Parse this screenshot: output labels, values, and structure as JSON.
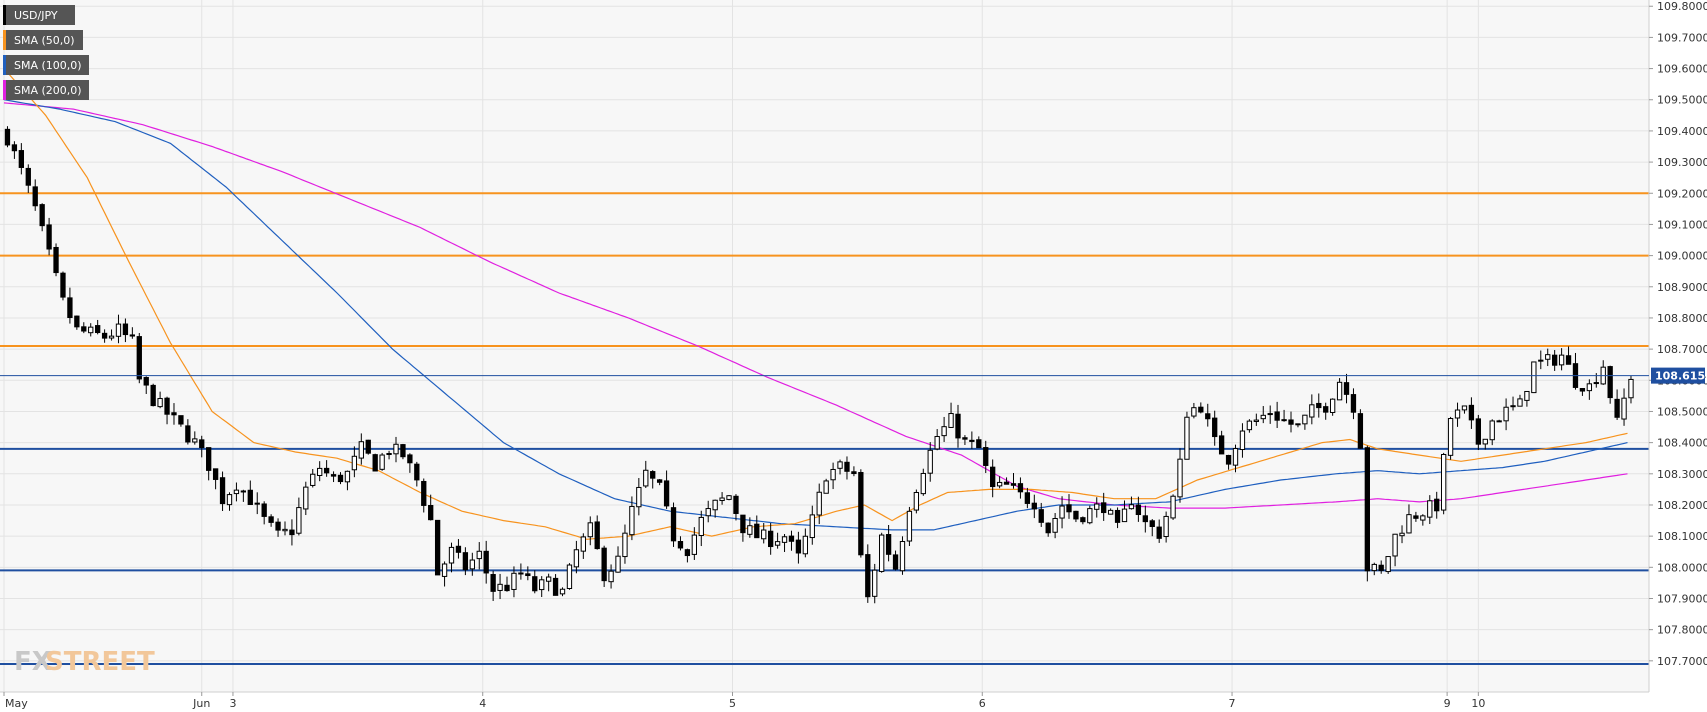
{
  "chart_data": {
    "type": "candlestick",
    "symbol": "USD/JPY",
    "legend": [
      {
        "label": "USD/JPY",
        "color": "#000000"
      },
      {
        "label": "SMA (50,0)",
        "color": "#f7931e"
      },
      {
        "label": "SMA (100,0)",
        "color": "#1f5fbf"
      },
      {
        "label": "SMA (200,0)",
        "color": "#e020e0"
      }
    ],
    "ylim": [
      107.6,
      109.82
    ],
    "yticks": [
      "109.8000",
      "109.7000",
      "109.6000",
      "109.5000",
      "109.4000",
      "109.3000",
      "109.2000",
      "109.1000",
      "109.0000",
      "108.9000",
      "108.8000",
      "108.7000",
      "108.6000",
      "108.5000",
      "108.4000",
      "108.3000",
      "108.2000",
      "108.1000",
      "108.0000",
      "107.9000",
      "107.8000",
      "107.7000"
    ],
    "xlim": [
      0,
      240
    ],
    "xticks": [
      {
        "label": "May",
        "x": 0
      },
      {
        "label": "Jun",
        "x": 28.5
      },
      {
        "label": "3",
        "x": 33
      },
      {
        "label": "4",
        "x": 69
      },
      {
        "label": "5",
        "x": 105
      },
      {
        "label": "6",
        "x": 141
      },
      {
        "label": "7",
        "x": 177
      },
      {
        "label": "9",
        "x": 208
      },
      {
        "label": "10",
        "x": 212.5
      }
    ],
    "last_price": 108.615,
    "last_price_label": "108.6150",
    "horizontal_levels": [
      {
        "value": 109.2,
        "color": "#f7931e"
      },
      {
        "value": 109.0,
        "color": "#f7931e"
      },
      {
        "value": 108.71,
        "color": "#f7931e"
      },
      {
        "value": 108.38,
        "color": "#1f4fa0"
      },
      {
        "value": 107.99,
        "color": "#1f4fa0"
      },
      {
        "value": 107.69,
        "color": "#1f4fa0"
      }
    ],
    "close_anchors": [
      [
        0,
        109.38
      ],
      [
        2,
        109.27
      ],
      [
        4,
        109.15
      ],
      [
        6,
        109.0
      ],
      [
        8,
        108.85
      ],
      [
        10,
        108.76
      ],
      [
        12,
        108.75
      ],
      [
        14,
        108.74
      ],
      [
        16,
        108.76
      ],
      [
        18,
        108.72
      ],
      [
        19,
        108.6
      ],
      [
        21,
        108.54
      ],
      [
        24,
        108.47
      ],
      [
        27,
        108.4
      ],
      [
        29,
        108.33
      ],
      [
        31,
        108.22
      ],
      [
        33,
        108.27
      ],
      [
        35,
        108.22
      ],
      [
        37,
        108.15
      ],
      [
        39,
        108.1
      ],
      [
        41,
        108.12
      ],
      [
        43,
        108.25
      ],
      [
        45,
        108.32
      ],
      [
        47,
        108.28
      ],
      [
        49,
        108.3
      ],
      [
        51,
        108.38
      ],
      [
        53,
        108.33
      ],
      [
        55,
        108.38
      ],
      [
        57,
        108.36
      ],
      [
        59,
        108.28
      ],
      [
        61,
        108.15
      ],
      [
        62,
        107.98
      ],
      [
        64,
        108.05
      ],
      [
        66,
        108.0
      ],
      [
        68,
        108.04
      ],
      [
        70,
        107.93
      ],
      [
        72,
        107.94
      ],
      [
        74,
        107.98
      ],
      [
        76,
        107.93
      ],
      [
        78,
        107.95
      ],
      [
        80,
        107.92
      ],
      [
        82,
        108.05
      ],
      [
        84,
        108.12
      ],
      [
        86,
        107.98
      ],
      [
        88,
        108.02
      ],
      [
        90,
        108.18
      ],
      [
        92,
        108.3
      ],
      [
        94,
        108.25
      ],
      [
        96,
        108.1
      ],
      [
        98,
        108.06
      ],
      [
        100,
        108.15
      ],
      [
        102,
        108.2
      ],
      [
        104,
        108.23
      ],
      [
        106,
        108.13
      ],
      [
        108,
        108.1
      ],
      [
        110,
        108.09
      ],
      [
        112,
        108.1
      ],
      [
        114,
        108.03
      ],
      [
        116,
        108.15
      ],
      [
        118,
        108.3
      ],
      [
        120,
        108.32
      ],
      [
        122,
        108.3
      ],
      [
        123,
        108.03
      ],
      [
        124,
        107.9
      ],
      [
        126,
        108.1
      ],
      [
        128,
        108.0
      ],
      [
        130,
        108.2
      ],
      [
        132,
        108.32
      ],
      [
        134,
        108.42
      ],
      [
        136,
        108.47
      ],
      [
        138,
        108.4
      ],
      [
        140,
        108.38
      ],
      [
        142,
        108.25
      ],
      [
        144,
        108.26
      ],
      [
        146,
        108.23
      ],
      [
        148,
        108.21
      ],
      [
        150,
        108.12
      ],
      [
        152,
        108.2
      ],
      [
        154,
        108.16
      ],
      [
        156,
        108.18
      ],
      [
        158,
        108.2
      ],
      [
        160,
        108.12
      ],
      [
        162,
        108.22
      ],
      [
        164,
        108.14
      ],
      [
        166,
        108.11
      ],
      [
        168,
        108.22
      ],
      [
        169,
        108.33
      ],
      [
        170,
        108.5
      ],
      [
        172,
        108.52
      ],
      [
        174,
        108.4
      ],
      [
        176,
        108.35
      ],
      [
        178,
        108.45
      ],
      [
        180,
        108.47
      ],
      [
        182,
        108.5
      ],
      [
        184,
        108.47
      ],
      [
        186,
        108.45
      ],
      [
        188,
        108.5
      ],
      [
        190,
        108.52
      ],
      [
        192,
        108.6
      ],
      [
        194,
        108.52
      ],
      [
        195,
        108.4
      ],
      [
        196,
        108.0
      ],
      [
        198,
        107.98
      ],
      [
        200,
        108.1
      ],
      [
        202,
        108.16
      ],
      [
        204,
        108.18
      ],
      [
        206,
        108.2
      ],
      [
        208,
        108.48
      ],
      [
        210,
        108.5
      ],
      [
        212,
        108.4
      ],
      [
        214,
        108.47
      ],
      [
        216,
        108.5
      ],
      [
        218,
        108.52
      ],
      [
        220,
        108.65
      ],
      [
        222,
        108.66
      ],
      [
        224,
        108.68
      ],
      [
        226,
        108.6
      ],
      [
        228,
        108.58
      ],
      [
        230,
        108.65
      ],
      [
        232,
        108.46
      ],
      [
        234,
        108.615
      ]
    ],
    "sma50": [
      [
        0,
        109.6
      ],
      [
        6,
        109.45
      ],
      [
        12,
        109.25
      ],
      [
        18,
        108.98
      ],
      [
        24,
        108.72
      ],
      [
        30,
        108.5
      ],
      [
        36,
        108.4
      ],
      [
        42,
        108.37
      ],
      [
        48,
        108.35
      ],
      [
        54,
        108.31
      ],
      [
        60,
        108.24
      ],
      [
        66,
        108.18
      ],
      [
        72,
        108.15
      ],
      [
        78,
        108.13
      ],
      [
        84,
        108.09
      ],
      [
        90,
        108.1
      ],
      [
        96,
        108.13
      ],
      [
        102,
        108.1
      ],
      [
        108,
        108.13
      ],
      [
        114,
        108.14
      ],
      [
        120,
        108.18
      ],
      [
        124,
        108.2
      ],
      [
        128,
        108.15
      ],
      [
        132,
        108.2
      ],
      [
        136,
        108.24
      ],
      [
        142,
        108.25
      ],
      [
        148,
        108.25
      ],
      [
        154,
        108.24
      ],
      [
        160,
        108.22
      ],
      [
        166,
        108.22
      ],
      [
        172,
        108.28
      ],
      [
        178,
        108.32
      ],
      [
        184,
        108.36
      ],
      [
        190,
        108.4
      ],
      [
        194,
        108.41
      ],
      [
        198,
        108.38
      ],
      [
        204,
        108.36
      ],
      [
        210,
        108.34
      ],
      [
        216,
        108.36
      ],
      [
        222,
        108.38
      ],
      [
        228,
        108.4
      ],
      [
        234,
        108.43
      ]
    ],
    "sma100": [
      [
        0,
        109.5
      ],
      [
        8,
        109.47
      ],
      [
        16,
        109.43
      ],
      [
        24,
        109.36
      ],
      [
        32,
        109.22
      ],
      [
        40,
        109.05
      ],
      [
        48,
        108.88
      ],
      [
        56,
        108.7
      ],
      [
        64,
        108.55
      ],
      [
        72,
        108.4
      ],
      [
        80,
        108.3
      ],
      [
        88,
        108.22
      ],
      [
        96,
        108.18
      ],
      [
        104,
        108.16
      ],
      [
        112,
        108.14
      ],
      [
        120,
        108.13
      ],
      [
        128,
        108.12
      ],
      [
        134,
        108.12
      ],
      [
        140,
        108.15
      ],
      [
        146,
        108.18
      ],
      [
        152,
        108.2
      ],
      [
        160,
        108.2
      ],
      [
        168,
        108.21
      ],
      [
        176,
        108.25
      ],
      [
        184,
        108.28
      ],
      [
        192,
        108.3
      ],
      [
        198,
        108.31
      ],
      [
        204,
        108.3
      ],
      [
        210,
        108.31
      ],
      [
        216,
        108.32
      ],
      [
        222,
        108.34
      ],
      [
        228,
        108.37
      ],
      [
        234,
        108.4
      ]
    ],
    "sma200": [
      [
        0,
        109.49
      ],
      [
        10,
        109.47
      ],
      [
        20,
        109.42
      ],
      [
        30,
        109.35
      ],
      [
        40,
        109.27
      ],
      [
        50,
        109.18
      ],
      [
        60,
        109.09
      ],
      [
        70,
        108.98
      ],
      [
        80,
        108.88
      ],
      [
        90,
        108.8
      ],
      [
        100,
        108.71
      ],
      [
        110,
        108.61
      ],
      [
        120,
        108.52
      ],
      [
        130,
        108.42
      ],
      [
        138,
        108.36
      ],
      [
        146,
        108.26
      ],
      [
        152,
        108.22
      ],
      [
        160,
        108.2
      ],
      [
        168,
        108.19
      ],
      [
        176,
        108.19
      ],
      [
        184,
        108.2
      ],
      [
        192,
        108.21
      ],
      [
        198,
        108.22
      ],
      [
        204,
        108.21
      ],
      [
        210,
        108.22
      ],
      [
        216,
        108.24
      ],
      [
        222,
        108.26
      ],
      [
        228,
        108.28
      ],
      [
        234,
        108.3
      ]
    ],
    "candle_count": 235
  },
  "branding": {
    "logo_fx": "FX",
    "logo_street": "STREET"
  }
}
